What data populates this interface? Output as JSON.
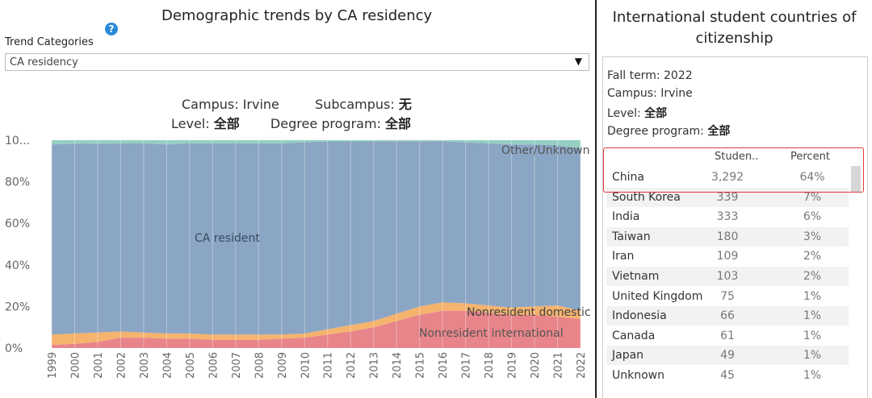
{
  "left_panel": {
    "title": "Demographic trends by CA residency",
    "help_icon": "question-icon",
    "trend_label": "Trend Categories",
    "dropdown_value": "CA residency",
    "filters": {
      "campus_label": "Campus:",
      "campus_value": "Irvine",
      "subcampus_label": "Subcampus:",
      "subcampus_value": "无",
      "level_label": "Level:",
      "level_value": "全部",
      "degree_label": "Degree program:",
      "degree_value": "全部"
    }
  },
  "chart_data": {
    "type": "area",
    "title": "Demographic trends by CA residency",
    "x": [
      "1999",
      "2000",
      "2001",
      "2002",
      "2003",
      "2004",
      "2005",
      "2006",
      "2007",
      "2008",
      "2009",
      "2010",
      "2011",
      "2012",
      "2013",
      "2014",
      "2015",
      "2016",
      "2017",
      "2018",
      "2019",
      "2020",
      "2021",
      "2022"
    ],
    "yticks": [
      "10...",
      "80%",
      "60%",
      "40%",
      "20%",
      "0%"
    ],
    "ylim": [
      0,
      100
    ],
    "series": [
      {
        "name": "Nonresident international",
        "color": "#e8858a",
        "values": [
          1.5,
          2,
          3,
          5,
          5,
          4.5,
          4.5,
          4,
          4,
          4,
          4.5,
          5,
          6.5,
          8,
          10,
          13,
          16,
          18,
          18,
          17,
          16,
          16,
          15,
          14
        ]
      },
      {
        "name": "Nonresident domestic",
        "color": "#f5b36e",
        "values": [
          5,
          5,
          4.5,
          3,
          2.5,
          2.5,
          2.5,
          2.5,
          2.5,
          2.5,
          2,
          2,
          2.5,
          3,
          3,
          3.5,
          4,
          4,
          3.5,
          3.5,
          3.5,
          4,
          5.5,
          4
        ]
      },
      {
        "name": "CA resident",
        "color": "#8ba6c4",
        "values": [
          91.5,
          91.3,
          90.7,
          90.4,
          91,
          91,
          91.5,
          92,
          92,
          92,
          92,
          92,
          90.4,
          88.4,
          86.4,
          83,
          79.4,
          77.6,
          77.5,
          78,
          78.5,
          78,
          77,
          78
        ]
      },
      {
        "name": "Other/Unknown",
        "color": "#94cfc2",
        "values": [
          2,
          1.7,
          1.8,
          1.6,
          1.5,
          2,
          1.5,
          1.5,
          1.5,
          1.5,
          1.5,
          1,
          0.6,
          0.6,
          0.6,
          0.5,
          0.6,
          0.4,
          1,
          1.5,
          2,
          2,
          2.5,
          4
        ]
      }
    ],
    "area_labels": {
      "ca_resident": "CA resident",
      "other": "Other/Unknown",
      "nonres_domestic": "Nonresident domestic",
      "nonres_international": "Nonresident international"
    }
  },
  "right_panel": {
    "title_line1": "International student countries of",
    "title_line2": "citizenship",
    "info": {
      "fall_term_label": "Fall term:",
      "fall_term_value": "2022",
      "campus_label": "Campus:",
      "campus_value": "Irvine",
      "level_label": "Level:",
      "level_value": "全部",
      "degree_label": "Degree program:",
      "degree_value": "全部"
    },
    "table": {
      "headers": {
        "students": "Studen..",
        "percent": "Percent"
      },
      "rows": [
        {
          "country": "China",
          "students": "3,292",
          "percent": "64%"
        },
        {
          "country": "South Korea",
          "students": "339",
          "percent": "7%"
        },
        {
          "country": "India",
          "students": "333",
          "percent": "6%"
        },
        {
          "country": "Taiwan",
          "students": "180",
          "percent": "3%"
        },
        {
          "country": "Iran",
          "students": "109",
          "percent": "2%"
        },
        {
          "country": "Vietnam",
          "students": "103",
          "percent": "2%"
        },
        {
          "country": "United Kingdom",
          "students": "75",
          "percent": "1%"
        },
        {
          "country": "Indonesia",
          "students": "66",
          "percent": "1%"
        },
        {
          "country": "Canada",
          "students": "61",
          "percent": "1%"
        },
        {
          "country": "Japan",
          "students": "49",
          "percent": "1%"
        },
        {
          "country": "Unknown",
          "students": "45",
          "percent": "1%"
        }
      ]
    }
  }
}
